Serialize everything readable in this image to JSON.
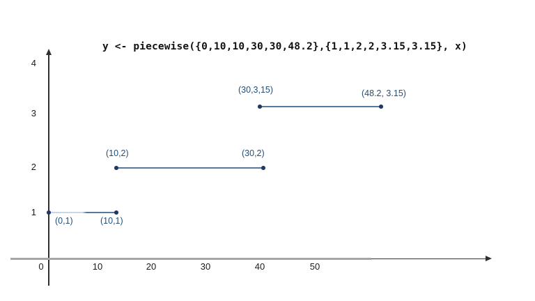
{
  "chart_data": {
    "type": "line",
    "title": "y <- piecewise({0,10,10,30,30,48.2},{1,1,2,2,3.15,3.15}, x)",
    "function": "piecewise",
    "segments": [
      {
        "from": [
          0,
          1
        ],
        "to": [
          10,
          1
        ],
        "start_label": "(0,1)",
        "end_label": "(10,1)"
      },
      {
        "from": [
          10,
          2
        ],
        "to": [
          30,
          2
        ],
        "start_label": "(10,2)",
        "end_label": "(30,2)"
      },
      {
        "from": [
          30,
          3.15
        ],
        "to": [
          48.2,
          3.15
        ],
        "start_label": "(30,3,15)",
        "end_label": "(48.2, 3.15)"
      }
    ],
    "x_tick_labels": [
      "10",
      "20",
      "30",
      "40",
      "50"
    ],
    "y_tick_labels": [
      "1",
      "2",
      "3",
      "4"
    ],
    "origin_label": "0",
    "xlim": [
      0,
      58
    ],
    "ylim": [
      0,
      4.3
    ],
    "grid": false,
    "legend": false,
    "colors": {
      "segment_line": "#54799c",
      "segment_line_light": "#c9d6e3",
      "point": "#1f3864",
      "point_label": "#1f4e79",
      "axis": "#2f2f2f",
      "x_axis_gray": "#a6a6a6",
      "title_text": "#111111"
    }
  }
}
